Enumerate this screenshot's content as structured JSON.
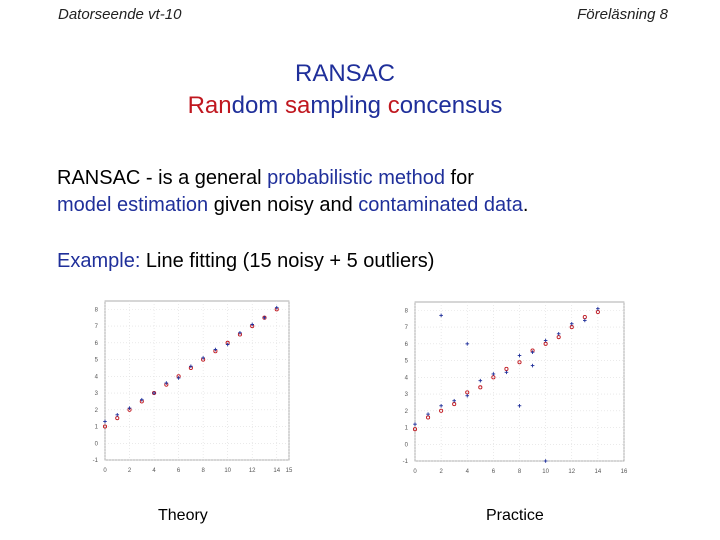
{
  "header": {
    "left": "Datorseende vt-10",
    "right": "Föreläsning 8"
  },
  "title": {
    "line1": "RANSAC",
    "line2_parts": [
      {
        "text": "Ran",
        "color": "red"
      },
      {
        "text": "dom ",
        "color": "blue"
      },
      {
        "text": "sa",
        "color": "red"
      },
      {
        "text": "mpling ",
        "color": "blue"
      },
      {
        "text": "c",
        "color": "red"
      },
      {
        "text": "oncensus",
        "color": "blue"
      }
    ]
  },
  "paragraph": {
    "parts": [
      {
        "text": "RANSAC - is a general ",
        "color": "black"
      },
      {
        "text": "probabilistic method",
        "color": "blue"
      },
      {
        "text": " for ",
        "color": "black"
      },
      {
        "text": "model estimation",
        "color": "blue"
      },
      {
        "text": " given noisy and ",
        "color": "black"
      },
      {
        "text": "contaminated data",
        "color": "blue"
      },
      {
        "text": ".",
        "color": "black"
      }
    ]
  },
  "example": {
    "label": "Example:",
    "text": " Line fitting (15 noisy + 5 outliers)"
  },
  "colors": {
    "blue": "#1f2f9a",
    "red": "#c0171f",
    "black": "#000000"
  },
  "captions": {
    "theory": "Theory",
    "practice": "Practice"
  },
  "chart_data": [
    {
      "type": "scatter",
      "title": "",
      "xlabel": "",
      "ylabel": "",
      "xlim": [
        0,
        15
      ],
      "ylim": [
        -1,
        8.5
      ],
      "xticks": [
        "0",
        "2",
        "4",
        "6",
        "8",
        "10",
        "12",
        "14",
        "15"
      ],
      "yticks": [
        "-1",
        "0",
        "1",
        "2",
        "3",
        "4",
        "5",
        "6",
        "7",
        "8"
      ],
      "grid": true,
      "series": [
        {
          "marker": "circle",
          "color": "#c0171f",
          "x": [
            0,
            1,
            2,
            3,
            4,
            5,
            6,
            7,
            8,
            9,
            10,
            11,
            12,
            13,
            14
          ],
          "y": [
            1.0,
            1.5,
            2.0,
            2.5,
            3.0,
            3.5,
            4.0,
            4.5,
            5.0,
            5.5,
            6.0,
            6.5,
            7.0,
            7.5,
            8.0
          ]
        },
        {
          "marker": "plus",
          "color": "#1f2f9a",
          "x": [
            0,
            1,
            2,
            3,
            4,
            5,
            6,
            7,
            8,
            9,
            10,
            11,
            12,
            13,
            14
          ],
          "y": [
            1.3,
            1.7,
            2.1,
            2.6,
            3.0,
            3.6,
            3.9,
            4.6,
            5.1,
            5.6,
            5.9,
            6.6,
            7.1,
            7.5,
            8.1
          ]
        }
      ]
    },
    {
      "type": "scatter",
      "title": "",
      "xlabel": "",
      "ylabel": "",
      "xlim": [
        0,
        16
      ],
      "ylim": [
        -1,
        8.5
      ],
      "xticks": [
        "0",
        "2",
        "4",
        "6",
        "8",
        "10",
        "12",
        "14",
        "16"
      ],
      "yticks": [
        "-1",
        "0",
        "1",
        "2",
        "3",
        "4",
        "5",
        "6",
        "7",
        "8"
      ],
      "grid": true,
      "series": [
        {
          "marker": "circle",
          "color": "#c0171f",
          "x": [
            0,
            1,
            2,
            3,
            4,
            5,
            6,
            7,
            8,
            9,
            10,
            11,
            12,
            13,
            14
          ],
          "y": [
            0.9,
            1.6,
            2.0,
            2.4,
            3.1,
            3.4,
            4.0,
            4.5,
            4.9,
            5.6,
            6.0,
            6.4,
            7.0,
            7.6,
            7.9
          ]
        },
        {
          "marker": "plus",
          "color": "#1f2f9a",
          "x": [
            0,
            1,
            2,
            3,
            4,
            5,
            6,
            7,
            8,
            9,
            10,
            11,
            12,
            13,
            14,
            2,
            4,
            8,
            10,
            9
          ],
          "y": [
            1.2,
            1.8,
            2.3,
            2.6,
            2.9,
            3.8,
            4.2,
            4.3,
            5.3,
            5.5,
            6.2,
            6.6,
            7.2,
            7.4,
            8.1,
            7.7,
            6.0,
            2.3,
            -1.0,
            4.7
          ]
        }
      ]
    }
  ]
}
